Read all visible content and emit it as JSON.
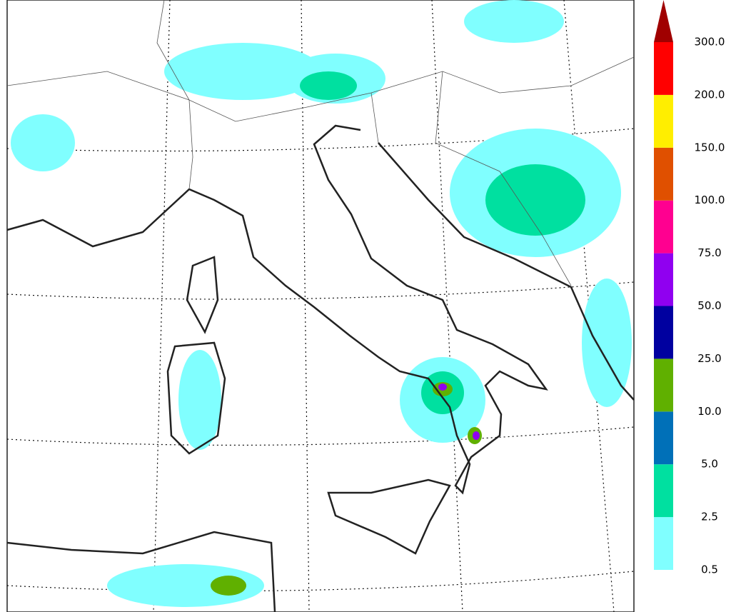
{
  "colorbar": {
    "labels": [
      "0.5",
      "2.5",
      "5.0",
      "10.0",
      "25.0",
      "50.0",
      "75.0",
      "100.0",
      "150.0",
      "200.0",
      "300.0"
    ],
    "colors": [
      "#80ffff",
      "#00e0a0",
      "#0070b8",
      "#60b000",
      "#0000a0",
      "#9000f0",
      "#ff0090",
      "#e05000",
      "#ffee00",
      "#ff0000",
      "#a00000"
    ]
  }
}
